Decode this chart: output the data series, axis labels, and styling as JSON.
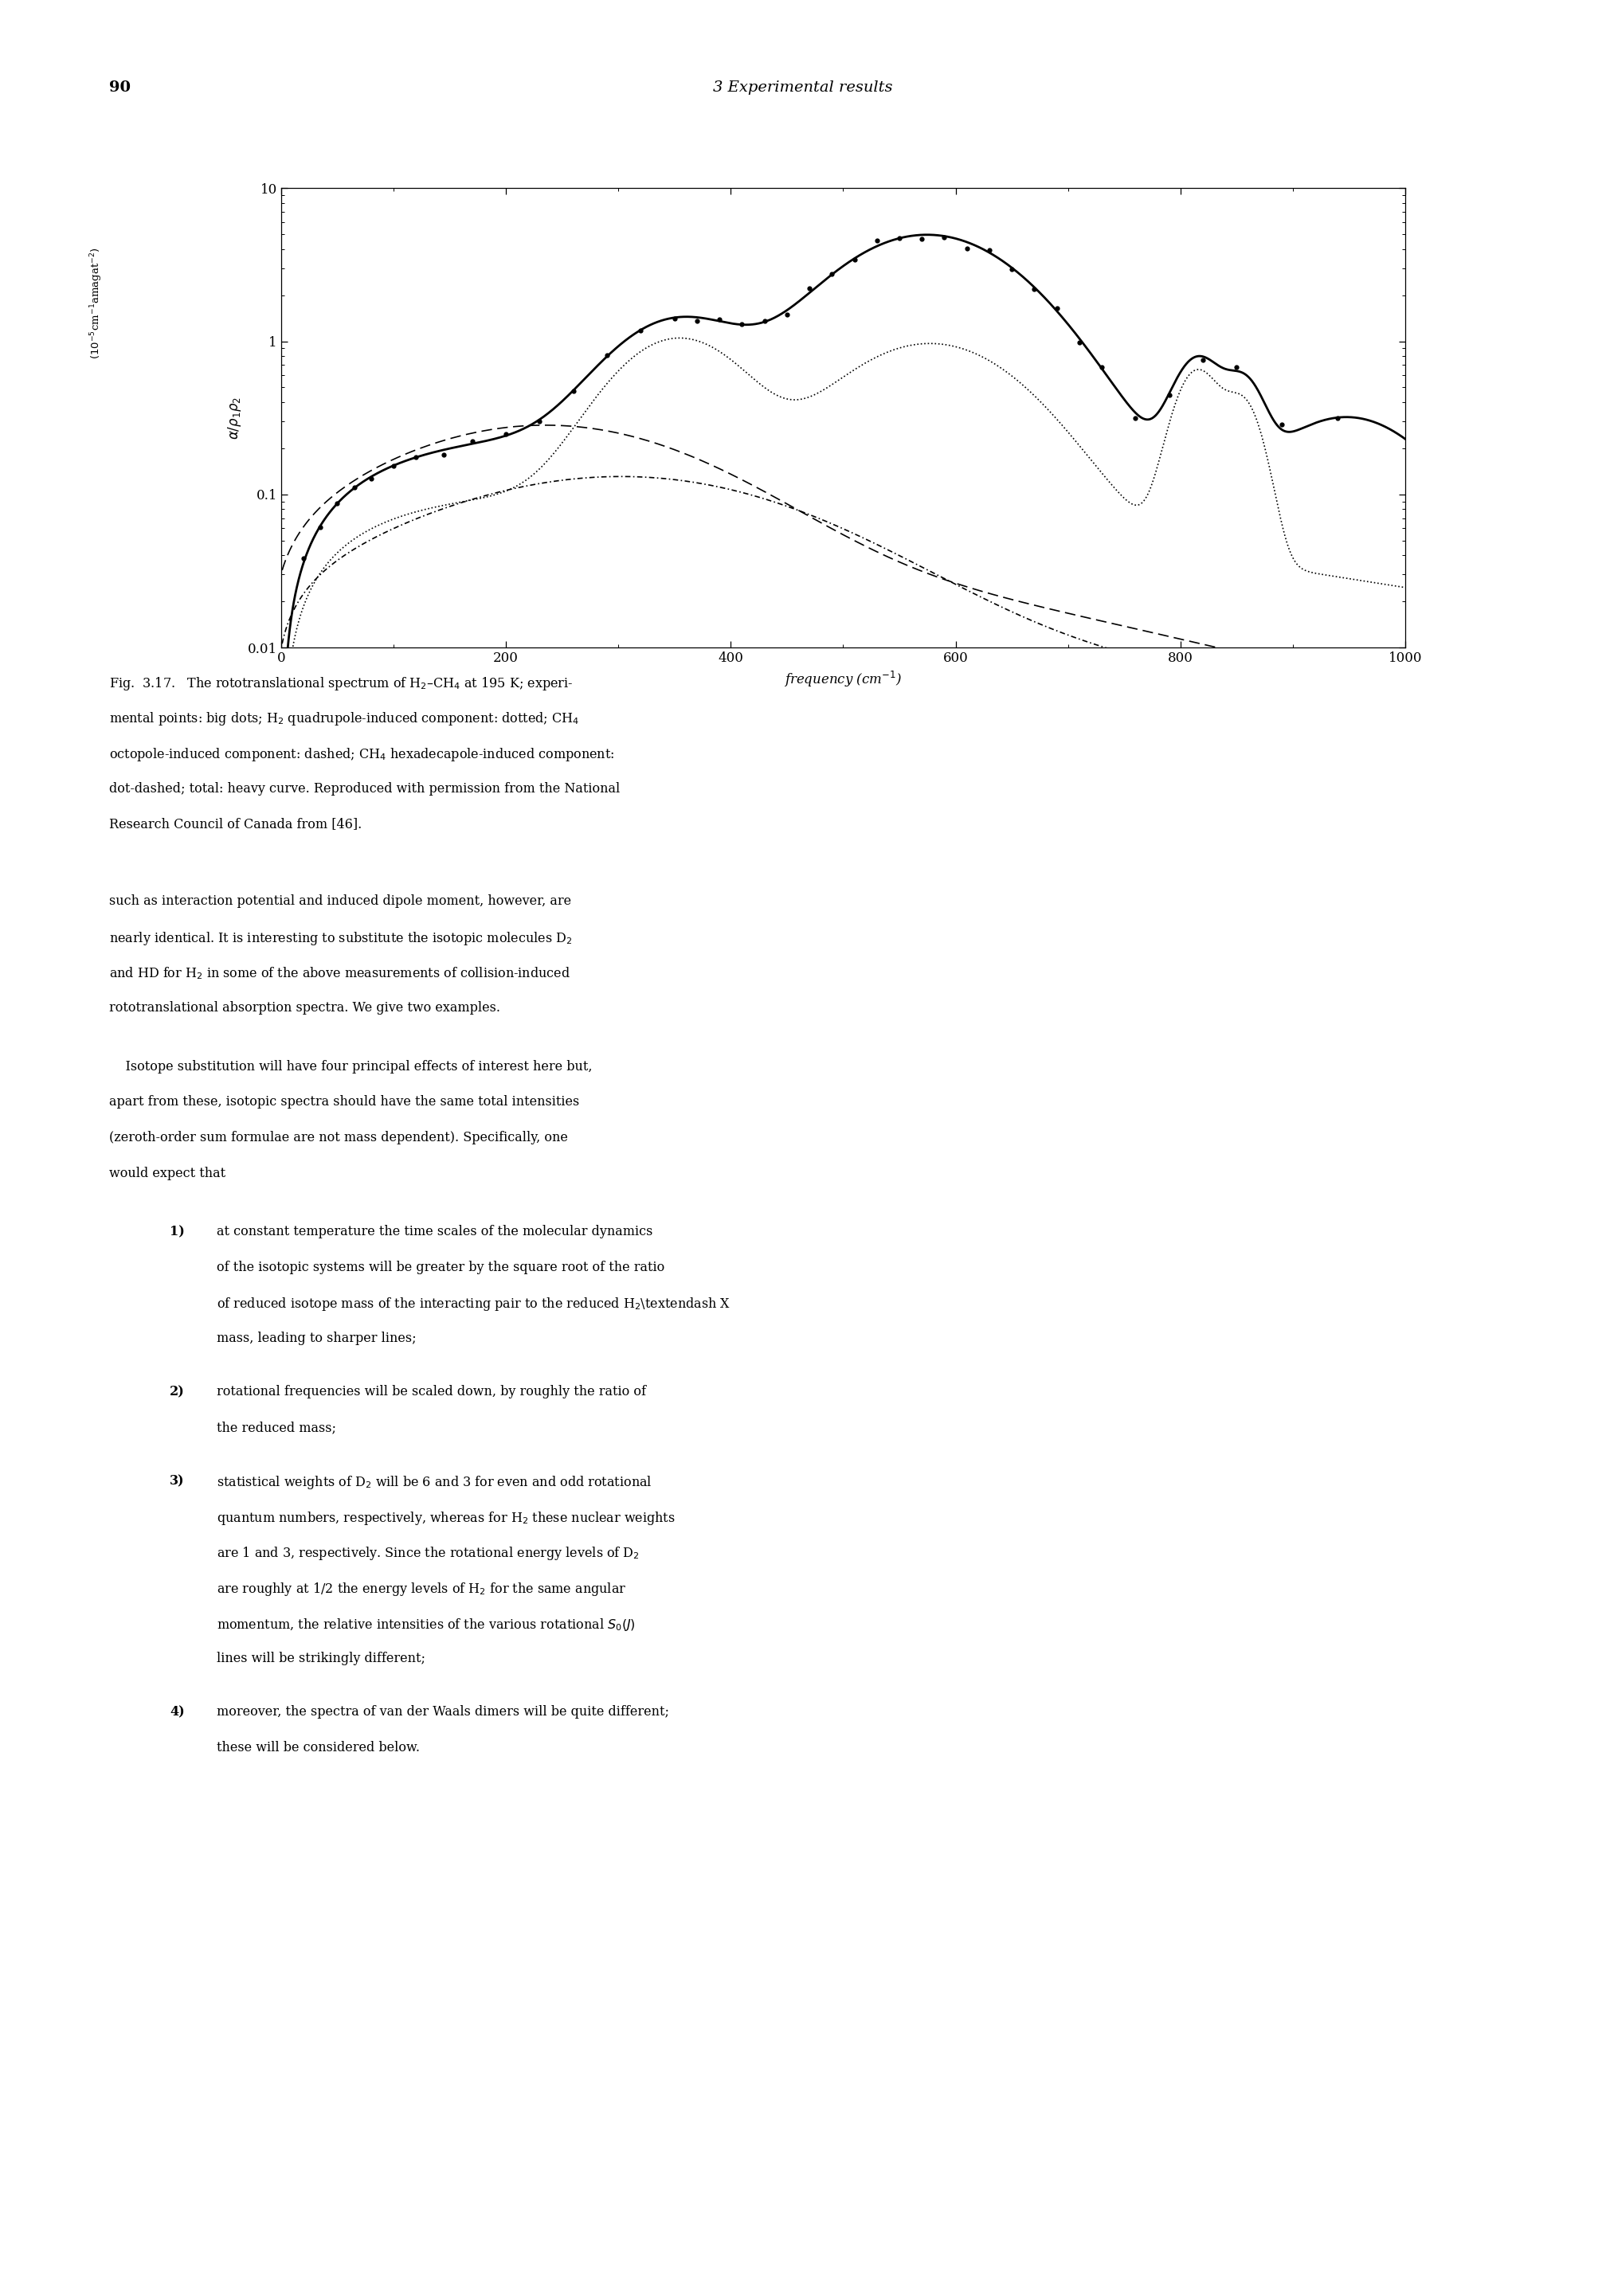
{
  "page_num": "90",
  "page_header": "3 Experimental results",
  "xmin": 0,
  "xmax": 1000,
  "ymin": 0.01,
  "ymax": 10,
  "xticks": [
    0,
    200,
    400,
    600,
    800,
    1000
  ],
  "yticks_vals": [
    0.01,
    0.1,
    1,
    10
  ],
  "yticks_labels": [
    "0.01",
    "0.1",
    "1",
    "10"
  ],
  "xlabel": "frequency (cm$^{-1}$)",
  "ylabel_left": "$\\alpha/\\rho_1\\rho_2$",
  "ylabel_top": "$(10^{-5}$cm$^{-1}$amagat$^{-2})$",
  "background": "#ffffff"
}
